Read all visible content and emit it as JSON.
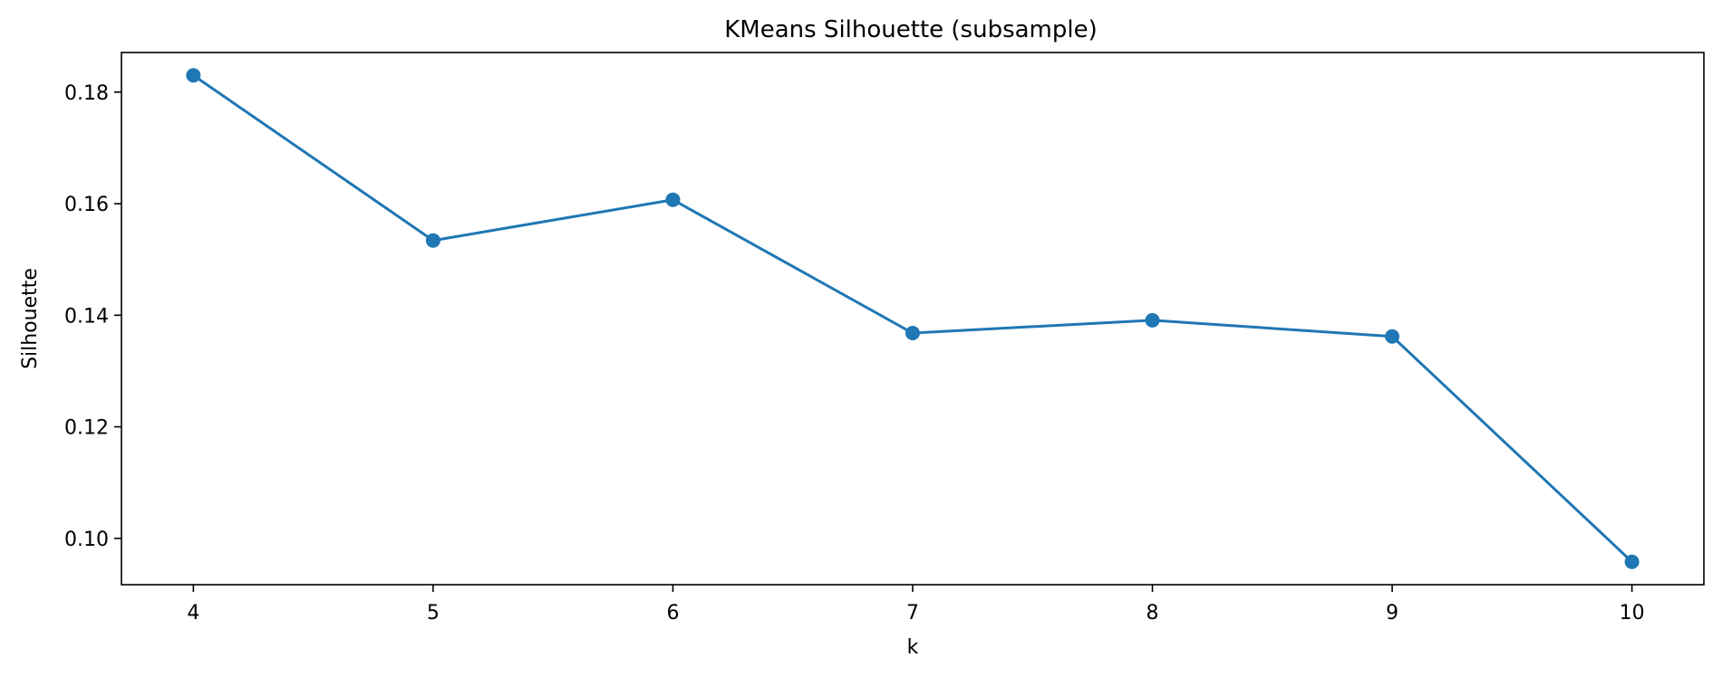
{
  "chart_data": {
    "type": "line",
    "title": "KMeans Silhouette (subsample)",
    "xlabel": "k",
    "ylabel": "Silhouette",
    "x": [
      4,
      5,
      6,
      7,
      8,
      9,
      10
    ],
    "series": [
      {
        "values": [
          0.183,
          0.1534,
          0.1607,
          0.1368,
          0.1391,
          0.1362,
          0.0958
        ],
        "color": "#1f77b4",
        "marker": "circle"
      }
    ],
    "xticks": [
      "4",
      "5",
      "6",
      "7",
      "8",
      "9",
      "10"
    ],
    "yticks": [
      "0.10",
      "0.12",
      "0.14",
      "0.16",
      "0.18"
    ],
    "xlim": [
      3.7,
      10.3
    ],
    "ylim": [
      0.0917,
      0.1871
    ],
    "grid": false,
    "legend": "none"
  }
}
